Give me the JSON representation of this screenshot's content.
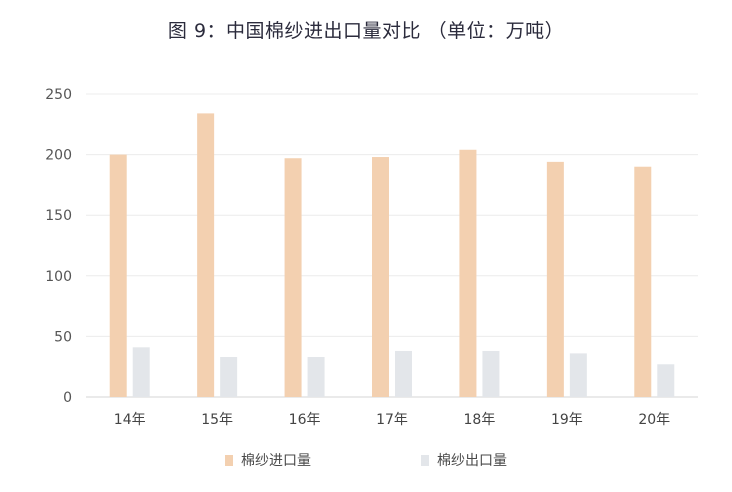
{
  "chart_data": {
    "type": "bar",
    "title": "图 9：中国棉纱进出口量对比 （单位：万吨）",
    "categories": [
      "14年",
      "15年",
      "16年",
      "17年",
      "18年",
      "19年",
      "20年"
    ],
    "series": [
      {
        "name": "棉纱进口量",
        "values": [
          200,
          234,
          197,
          198,
          204,
          194,
          190
        ],
        "color": "#f3d0b0"
      },
      {
        "name": "棉纱出口量",
        "values": [
          41,
          33,
          33,
          38,
          38,
          36,
          27
        ],
        "color": "#e3e6ea"
      }
    ],
    "yticks": [
      0,
      50,
      100,
      150,
      200,
      250
    ],
    "ylim": [
      0,
      250
    ],
    "grid": true,
    "legend_position": "bottom"
  }
}
